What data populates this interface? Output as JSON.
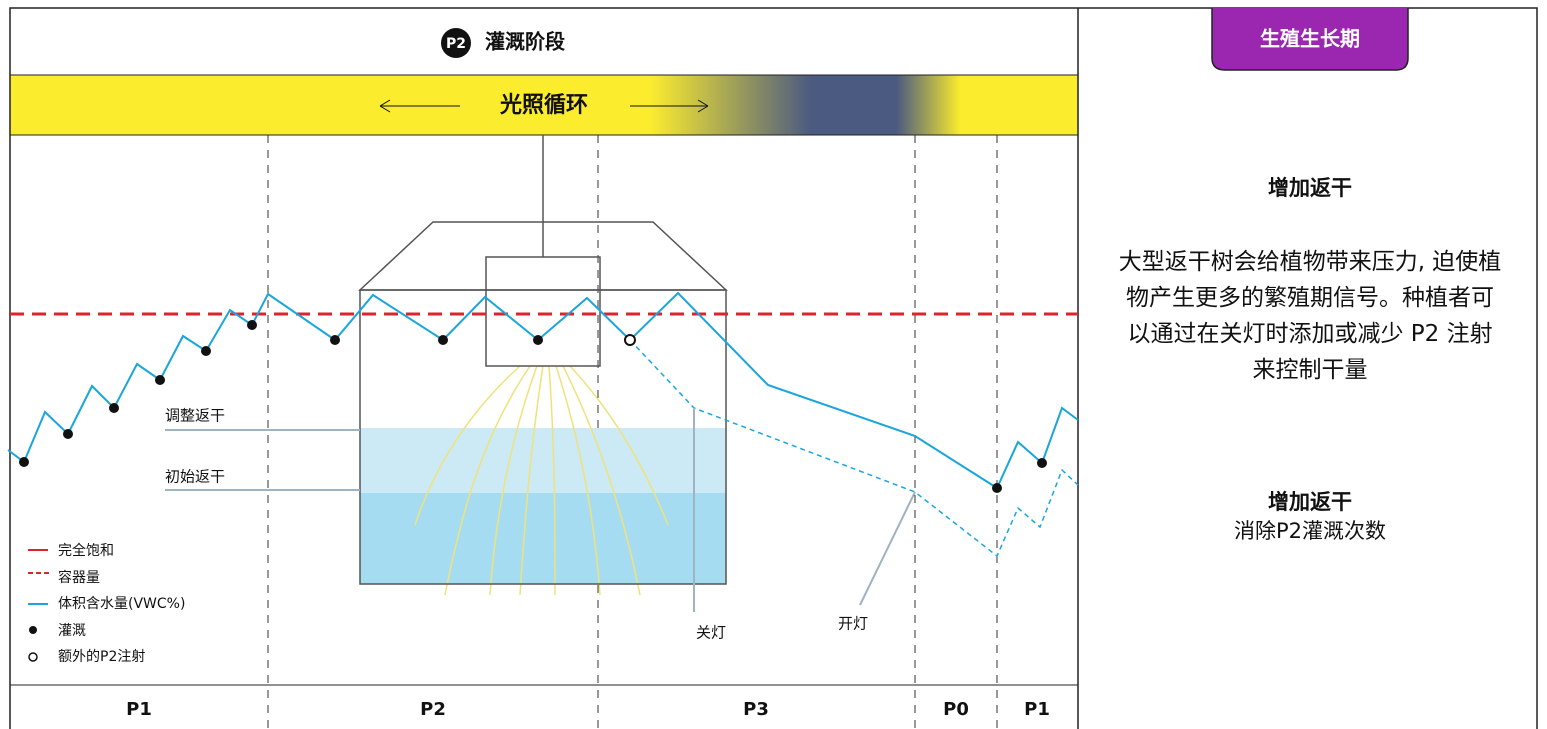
{
  "header": {
    "badge": "P2",
    "title": "灌溉阶段"
  },
  "light_bar": {
    "label": "光照循环"
  },
  "labels": {
    "adjusted": "调整返干",
    "initial": "初始返干",
    "lights_off": "关灯",
    "lights_on": "开灯"
  },
  "legend": {
    "items": [
      "完全饱和",
      "容器量",
      "体积含水量(VWC%)",
      "灌溉",
      "额外的P2注射"
    ]
  },
  "phases": [
    "P1",
    "P2",
    "P3",
    "P0",
    "P1"
  ],
  "side": {
    "tag": "生殖生长期",
    "heading": "增加返干",
    "body": "大型返干树会给植物带来压力, 迫使植物产生更多的繁殖期信号。种植者可以通过在关灯时添加或减少 P2 注射来控制干量",
    "heading2": "增加返干",
    "body2": "消除P2灌溉次数"
  }
}
